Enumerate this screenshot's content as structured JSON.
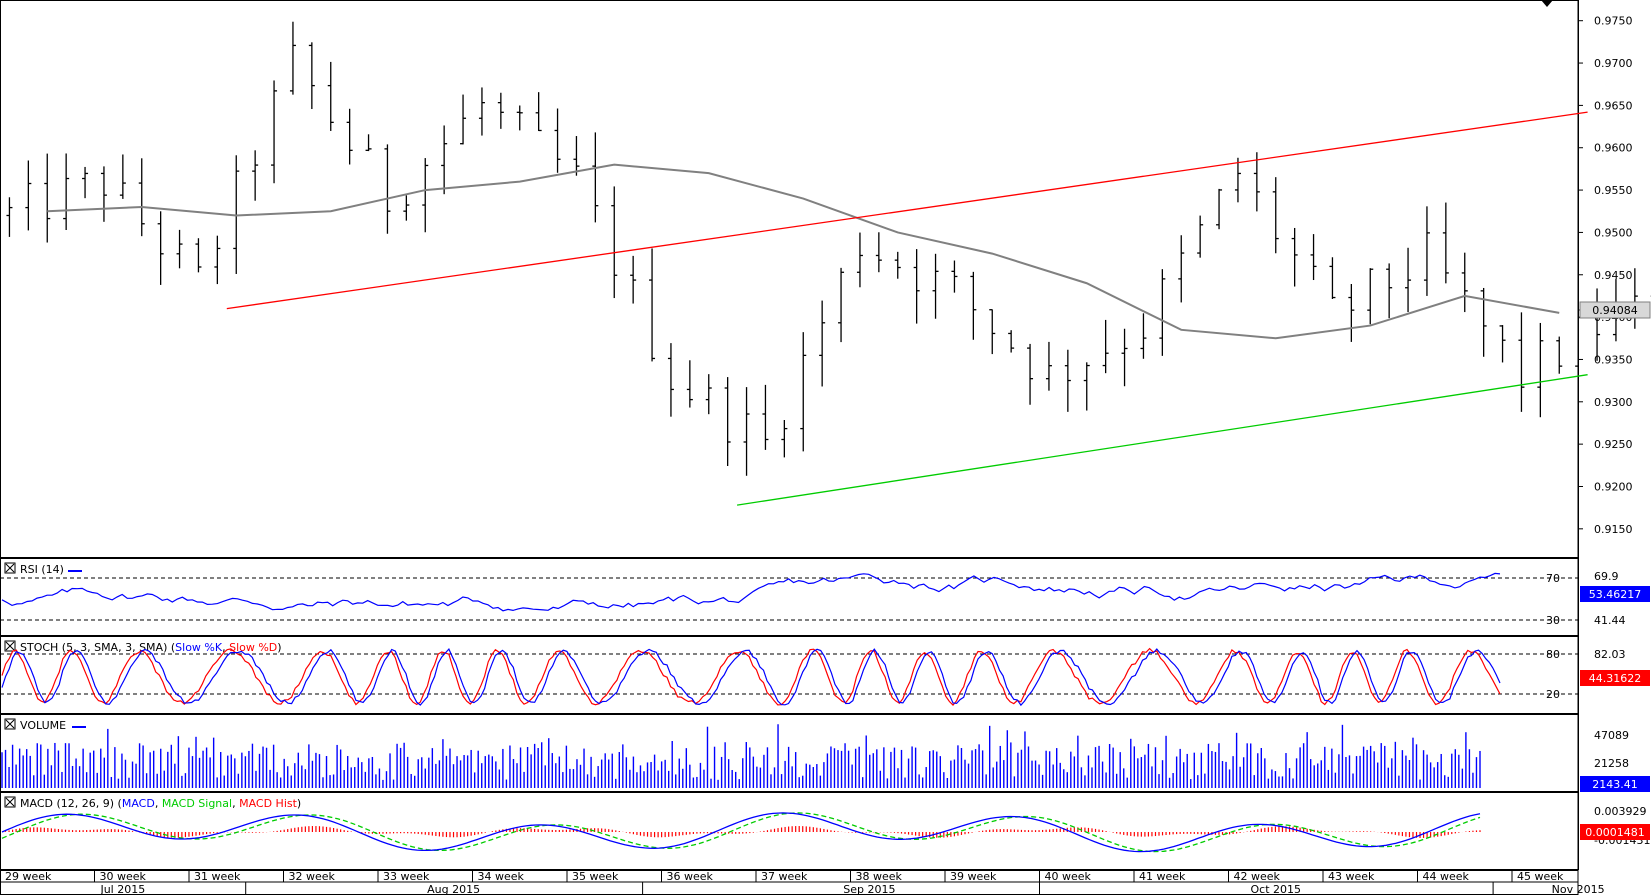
{
  "chart_data": [
    {
      "type": "ohlc",
      "pane": "price",
      "x_weeks": [
        "29 week",
        "30 week",
        "31 week",
        "32 week",
        "33 week",
        "34 week",
        "35 week",
        "36 week",
        "37 week",
        "38 week",
        "39 week",
        "40 week",
        "41 week",
        "42 week",
        "43 week",
        "44 week",
        "45 week"
      ],
      "x_months": [
        "Jul 2015",
        "Aug 2015",
        "Sep 2015",
        "Oct 2015",
        "Nov 2015"
      ],
      "y_ticks": [
        "0.9750",
        "0.9700",
        "0.9650",
        "0.9600",
        "0.9550",
        "0.9500",
        "0.9450",
        "0.9400",
        "0.9350",
        "0.9300",
        "0.9250",
        "0.9200",
        "0.9150"
      ],
      "ylim": [
        0.9125,
        0.9765
      ],
      "close_path_per_week": [
        0.952,
        0.956,
        0.944,
        0.97,
        0.954,
        0.965,
        0.956,
        0.933,
        0.925,
        0.949,
        0.943,
        0.933,
        0.939,
        0.957,
        0.94,
        0.947,
        0.933,
        0.9405
      ],
      "moving_average_line": [
        0.9525,
        0.953,
        0.952,
        0.9525,
        0.955,
        0.956,
        0.958,
        0.957,
        0.954,
        0.95,
        0.9475,
        0.944,
        0.9385,
        0.9375,
        0.939,
        0.9425,
        0.9405
      ],
      "trendline_upper": {
        "from": [
          "31 week",
          0.941
        ],
        "to": [
          "46 week",
          0.9642
        ],
        "color": "#ff0000"
      },
      "trendline_lower": {
        "from": [
          "36 week",
          0.9178
        ],
        "to": [
          "46 week",
          0.9332
        ],
        "color": "#00cc00"
      },
      "last_value_label": "0.94084",
      "series_color": "#000000",
      "ma_color": "#808080"
    },
    {
      "type": "line",
      "pane": "rsi",
      "label": "RSI (14)",
      "levels": [
        "70",
        "30"
      ],
      "y_ticks": [
        "69.9",
        "41.44"
      ],
      "last_value_label": "53.46217",
      "color": "#0000ff"
    },
    {
      "type": "line",
      "pane": "stoch",
      "label": "STOCH (5, 3, SMA, 3, SMA)",
      "legend": [
        "Slow %K",
        "Slow %D"
      ],
      "levels": [
        "80",
        "20"
      ],
      "y_ticks": [
        "82.03"
      ],
      "last_value_label": "44.31622",
      "colors": [
        "#0000ff",
        "#ff0000"
      ]
    },
    {
      "type": "bar",
      "pane": "volume",
      "label": "VOLUME",
      "y_ticks": [
        "47089",
        "21258"
      ],
      "last_value_label": "2143.41",
      "color": "#0000ff"
    },
    {
      "type": "line",
      "pane": "macd",
      "label": "MACD (12, 26, 9)",
      "legend": [
        "MACD",
        "MACD Signal",
        "MACD Hist"
      ],
      "y_ticks": [
        "0.003929",
        "-0.001431"
      ],
      "last_value_label": "0.0001481",
      "colors": [
        "#0000ff",
        "#00cc00",
        "#ff0000"
      ]
    }
  ],
  "labels": {
    "rsi_label": "RSI (14)",
    "stoch_label": "STOCH (5, 3, SMA, 3, SMA)",
    "stoch_k": "Slow %K",
    "stoch_d": "Slow %D",
    "volume_label": "VOLUME",
    "macd_label": "MACD (12, 26, 9)",
    "macd_a": "MACD",
    "macd_b": "MACD Signal",
    "macd_c": "MACD Hist"
  }
}
